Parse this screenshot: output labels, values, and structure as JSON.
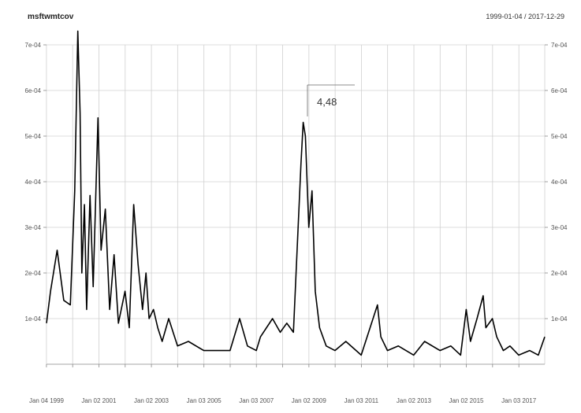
{
  "chart_data": {
    "type": "line",
    "title": "msftwmtcov",
    "date_range": "1999-01-04 / 2017-12-29",
    "xlabel": "",
    "ylabel": "",
    "x_range": [
      "1999-01-04",
      "2017-12-29"
    ],
    "ylim": [
      0,
      0.0007
    ],
    "y_ticks": [
      "1e-04",
      "2e-04",
      "3e-04",
      "4e-04",
      "5e-04",
      "6e-04",
      "7e-04"
    ],
    "x_ticks": [
      "Jan 04 1999",
      "Jan 02 2001",
      "Jan 02 2003",
      "Jan 03 2005",
      "Jan 03 2007",
      "Jan 02 2009",
      "Jan 03 2011",
      "Jan 02 2013",
      "Jan 02 2015",
      "Jan 03 2017"
    ],
    "grid": true,
    "annotation": "4,48",
    "series": [
      {
        "x": [
          "1999-01-04",
          "1999-03-01",
          "1999-06-01",
          "1999-09-01",
          "1999-12-01",
          "2000-02-01",
          "2000-03-15",
          "2000-04-15",
          "2000-05-10",
          "2000-06-15",
          "2000-07-15",
          "2000-09-01",
          "2000-10-15",
          "2000-12-20",
          "2001-02-01",
          "2001-04-01",
          "2001-06-01",
          "2001-08-01",
          "2001-10-01",
          "2002-01-01",
          "2002-03-01",
          "2002-05-01",
          "2002-07-01",
          "2002-09-01",
          "2002-10-20",
          "2002-12-01",
          "2003-02-01",
          "2003-04-01",
          "2003-06-01",
          "2003-09-01",
          "2004-01-01",
          "2004-06-01",
          "2005-01-01",
          "2005-06-01",
          "2006-01-01",
          "2006-05-15",
          "2006-09-01",
          "2007-01-01",
          "2007-03-01",
          "2007-08-15",
          "2007-12-01",
          "2008-03-01",
          "2008-06-01",
          "2008-09-15",
          "2008-10-15",
          "2008-11-15",
          "2009-01-01",
          "2009-02-15",
          "2009-04-01",
          "2009-06-01",
          "2009-09-01",
          "2010-01-01",
          "2010-06-01",
          "2011-01-01",
          "2011-08-15",
          "2011-10-01",
          "2012-01-01",
          "2012-06-01",
          "2013-01-01",
          "2013-06-01",
          "2014-01-01",
          "2014-06-01",
          "2014-10-15",
          "2015-01-01",
          "2015-03-01",
          "2015-06-01",
          "2015-08-25",
          "2015-10-01",
          "2016-01-01",
          "2016-03-01",
          "2016-06-01",
          "2016-09-01",
          "2017-01-01",
          "2017-06-01",
          "2017-10-01",
          "2017-12-29"
        ],
        "values": [
          9e-05,
          0.00016,
          0.00025,
          0.00014,
          0.00013,
          0.00038,
          0.00073,
          0.00055,
          0.0002,
          0.00035,
          0.00012,
          0.00037,
          0.00017,
          0.00054,
          0.00025,
          0.00034,
          0.00012,
          0.00024,
          9e-05,
          0.00016,
          8e-05,
          0.00035,
          0.00022,
          0.00012,
          0.0002,
          0.0001,
          0.00012,
          8e-05,
          5e-05,
          0.0001,
          4e-05,
          5e-05,
          3e-05,
          3e-05,
          3e-05,
          0.0001,
          4e-05,
          3e-05,
          6e-05,
          0.0001,
          7e-05,
          9e-05,
          7e-05,
          0.00044,
          0.00053,
          0.0005,
          0.0003,
          0.00038,
          0.00016,
          8e-05,
          4e-05,
          3e-05,
          5e-05,
          2e-05,
          0.00013,
          6e-05,
          3e-05,
          4e-05,
          2e-05,
          5e-05,
          3e-05,
          4e-05,
          2e-05,
          0.00012,
          5e-05,
          0.0001,
          0.00015,
          8e-05,
          0.0001,
          6e-05,
          3e-05,
          4e-05,
          2e-05,
          3e-05,
          2e-05,
          6e-05
        ]
      }
    ]
  }
}
